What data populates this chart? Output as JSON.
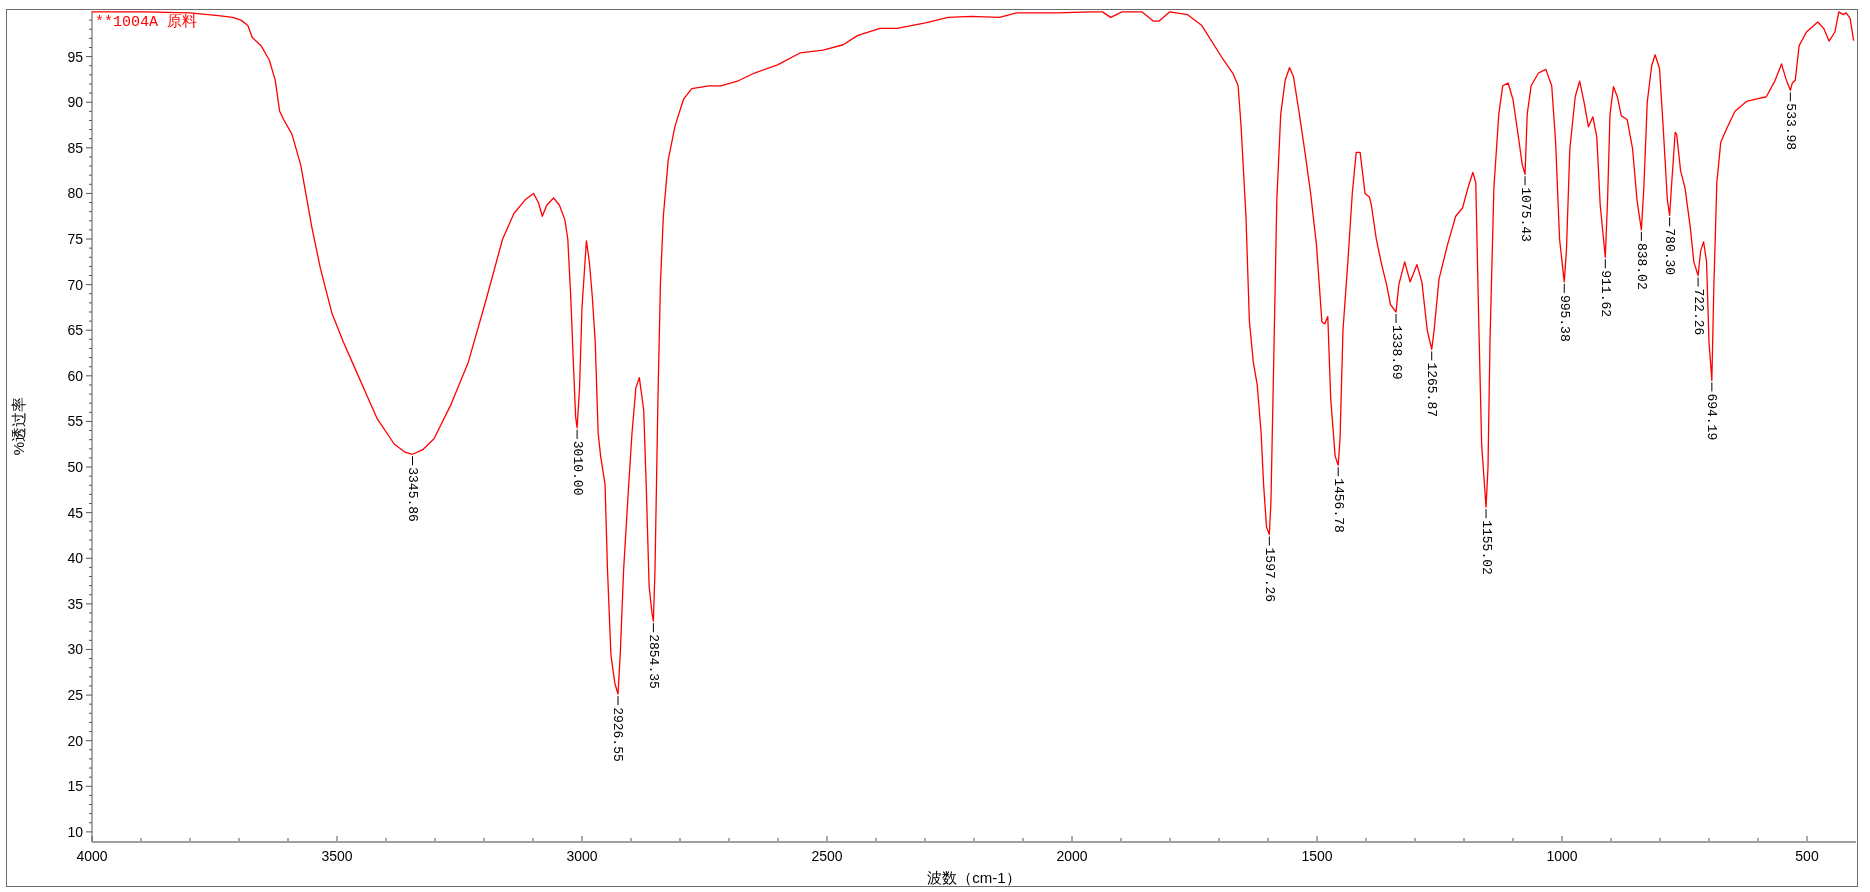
{
  "chart_data": {
    "type": "line",
    "xlabel": "波数（cm-1）",
    "ylabel": "%透过率",
    "xlim": [
      4000,
      400
    ],
    "ylim": [
      9,
      100
    ],
    "xticks": [
      4000,
      {
        "value": 3900,
        "label": null
      },
      {
        "value": 3800,
        "label": null
      },
      {
        "value": 3700,
        "label": null
      },
      {
        "value": 3600,
        "label": null
      },
      3500,
      {
        "value": 3400,
        "label": null
      },
      {
        "value": 3300,
        "label": null
      },
      {
        "value": 3200,
        "label": null
      },
      {
        "value": 3100,
        "label": null
      },
      3000,
      {
        "value": 2900,
        "label": null
      },
      {
        "value": 2800,
        "label": null
      },
      {
        "value": 2700,
        "label": null
      },
      {
        "value": 2600,
        "label": null
      },
      2500,
      {
        "value": 2400,
        "label": null
      },
      {
        "value": 2300,
        "label": null
      },
      {
        "value": 2200,
        "label": null
      },
      {
        "value": 2100,
        "label": null
      },
      2000,
      {
        "value": 1900,
        "label": null
      },
      {
        "value": 1800,
        "label": null
      },
      {
        "value": 1700,
        "label": null
      },
      {
        "value": 1600,
        "label": null
      },
      1500,
      {
        "value": 1400,
        "label": null
      },
      {
        "value": 1300,
        "label": null
      },
      {
        "value": 1200,
        "label": null
      },
      {
        "value": 1100,
        "label": null
      },
      1000,
      {
        "value": 900,
        "label": null
      },
      {
        "value": 800,
        "label": null
      },
      {
        "value": 700,
        "label": null
      },
      {
        "value": 600,
        "label": null
      },
      500
    ],
    "yticks": [
      10,
      {
        "value": 11,
        "label": null
      },
      {
        "value": 12,
        "label": null
      },
      {
        "value": 13,
        "label": null
      },
      {
        "value": 14,
        "label": null
      },
      15,
      {
        "value": 16,
        "label": null
      },
      {
        "value": 17,
        "label": null
      },
      {
        "value": 18,
        "label": null
      },
      {
        "value": 19,
        "label": null
      },
      20,
      {
        "value": 21,
        "label": null
      },
      {
        "value": 22,
        "label": null
      },
      {
        "value": 23,
        "label": null
      },
      {
        "value": 24,
        "label": null
      },
      25,
      {
        "value": 26,
        "label": null
      },
      {
        "value": 27,
        "label": null
      },
      {
        "value": 28,
        "label": null
      },
      {
        "value": 29,
        "label": null
      },
      30,
      {
        "value": 31,
        "label": null
      },
      {
        "value": 32,
        "label": null
      },
      {
        "value": 33,
        "label": null
      },
      {
        "value": 34,
        "label": null
      },
      35,
      {
        "value": 36,
        "label": null
      },
      {
        "value": 37,
        "label": null
      },
      {
        "value": 38,
        "label": null
      },
      {
        "value": 39,
        "label": null
      },
      40,
      {
        "value": 41,
        "label": null
      },
      {
        "value": 42,
        "label": null
      },
      {
        "value": 43,
        "label": null
      },
      {
        "value": 44,
        "label": null
      },
      45,
      {
        "value": 46,
        "label": null
      },
      {
        "value": 47,
        "label": null
      },
      {
        "value": 48,
        "label": null
      },
      {
        "value": 49,
        "label": null
      },
      50,
      {
        "value": 51,
        "label": null
      },
      {
        "value": 52,
        "label": null
      },
      {
        "value": 53,
        "label": null
      },
      {
        "value": 54,
        "label": null
      },
      55,
      {
        "value": 56,
        "label": null
      },
      {
        "value": 57,
        "label": null
      },
      {
        "value": 58,
        "label": null
      },
      {
        "value": 59,
        "label": null
      },
      60,
      {
        "value": 61,
        "label": null
      },
      {
        "value": 62,
        "label": null
      },
      {
        "value": 63,
        "label": null
      },
      {
        "value": 64,
        "label": null
      },
      65,
      {
        "value": 66,
        "label": null
      },
      {
        "value": 67,
        "label": null
      },
      {
        "value": 68,
        "label": null
      },
      {
        "value": 69,
        "label": null
      },
      70,
      {
        "value": 71,
        "label": null
      },
      {
        "value": 72,
        "label": null
      },
      {
        "value": 73,
        "label": null
      },
      {
        "value": 74,
        "label": null
      },
      75,
      {
        "value": 76,
        "label": null
      },
      {
        "value": 77,
        "label": null
      },
      {
        "value": 78,
        "label": null
      },
      {
        "value": 79,
        "label": null
      },
      80,
      {
        "value": 81,
        "label": null
      },
      {
        "value": 82,
        "label": null
      },
      {
        "value": 83,
        "label": null
      },
      {
        "value": 84,
        "label": null
      },
      85,
      {
        "value": 86,
        "label": null
      },
      {
        "value": 87,
        "label": null
      },
      {
        "value": 88,
        "label": null
      },
      {
        "value": 89,
        "label": null
      },
      90,
      {
        "value": 91,
        "label": null
      },
      {
        "value": 92,
        "label": null
      },
      {
        "value": 93,
        "label": null
      },
      {
        "value": 94,
        "label": null
      },
      95,
      {
        "value": 96,
        "label": null
      },
      {
        "value": 97,
        "label": null
      },
      {
        "value": 98,
        "label": null
      },
      {
        "value": 99,
        "label": null
      }
    ],
    "x": [
      4000,
      3893,
      3800,
      3742,
      3713,
      3696,
      3682,
      3673,
      3655,
      3638,
      3626,
      3617,
      3609,
      3592,
      3574,
      3551,
      3534,
      3510,
      3487,
      3464,
      3441,
      3418,
      3383,
      3360,
      3345.86,
      3325,
      3302,
      3267,
      3232,
      3197,
      3162,
      3139,
      3116,
      3099,
      3089,
      3081,
      3072,
      3058,
      3046,
      3035,
      3029,
      3023,
      3017,
      3013,
      3010,
      3005,
      3000,
      2991,
      2985,
      2979,
      2973,
      2967,
      2962,
      2953,
      2948,
      2941,
      2933,
      2926.55,
      2922,
      2915,
      2906,
      2898,
      2890,
      2883,
      2874,
      2869,
      2863,
      2857,
      2854.35,
      2851,
      2845,
      2840,
      2834,
      2824,
      2810,
      2793,
      2776,
      2741,
      2717,
      2683,
      2648,
      2601,
      2555,
      2508,
      2467,
      2438,
      2392,
      2357,
      2299,
      2253,
      2206,
      2148,
      2113,
      2031,
      1962,
      1938,
      1921,
      1898,
      1857,
      1834,
      1822,
      1801,
      1764,
      1735,
      1694,
      1671,
      1661,
      1655,
      1645,
      1638,
      1630,
      1622,
      1614,
      1609,
      1603,
      1597.26,
      1594,
      1588,
      1582,
      1574,
      1565,
      1556,
      1548,
      1536,
      1524,
      1513,
      1501,
      1490,
      1484,
      1478,
      1472,
      1463,
      1456.78,
      1453,
      1447,
      1437,
      1428,
      1420,
      1412,
      1402,
      1393,
      1389,
      1379,
      1368,
      1358,
      1350,
      1338.69,
      1333,
      1321,
      1310,
      1296,
      1286,
      1275,
      1265.87,
      1261,
      1251,
      1234,
      1217,
      1203,
      1192,
      1182,
      1176,
      1170,
      1164,
      1155.02,
      1151,
      1147,
      1139,
      1129,
      1121,
      1110,
      1100,
      1089,
      1081,
      1075.43,
      1071,
      1063,
      1048,
      1033,
      1021,
      1013,
      1005,
      995.38,
      991,
      984,
      973,
      964,
      955,
      946,
      937,
      929,
      922,
      911.62,
      907,
      902,
      895,
      887,
      879,
      867,
      856,
      847,
      838.02,
      833,
      826,
      817,
      810,
      801,
      793,
      785,
      780.3,
      776,
      769,
      766,
      758,
      749,
      738,
      731,
      722.26,
      717,
      711,
      705,
      700,
      694.19,
      690,
      684,
      676,
      664,
      647,
      623,
      600,
      583,
      565,
      552,
      542,
      533.98,
      530,
      524,
      516,
      501,
      478,
      466,
      455,
      443,
      435,
      426,
      420,
      412,
      405
    ],
    "series": [
      {
        "name": "**1004A 原料",
        "color": "#ff0000",
        "values": [
          99.9,
          99.9,
          99.8,
          99.5,
          99.3,
          99.0,
          98.4,
          97.1,
          96.2,
          94.6,
          92.4,
          89.0,
          88.1,
          86.5,
          83.1,
          76.2,
          71.8,
          66.8,
          63.7,
          60.9,
          58.1,
          55.3,
          52.5,
          51.6,
          51.4,
          51.9,
          53.1,
          56.9,
          61.5,
          68.1,
          75.0,
          77.8,
          79.3,
          80.0,
          79.0,
          77.5,
          78.7,
          79.5,
          78.7,
          77.1,
          75.0,
          68.7,
          60.6,
          55.5,
          54.3,
          58.7,
          67.5,
          74.8,
          72.5,
          68.7,
          63.7,
          53.7,
          51.2,
          48.1,
          38.8,
          29.4,
          26.3,
          25.1,
          29.4,
          38.8,
          46.9,
          53.7,
          58.7,
          59.8,
          56.2,
          48.1,
          36.9,
          33.9,
          33.1,
          38.8,
          57.5,
          70.0,
          77.5,
          83.7,
          87.4,
          90.3,
          91.5,
          91.8,
          91.8,
          92.3,
          93.2,
          94.1,
          95.4,
          95.7,
          96.3,
          97.3,
          98.1,
          98.1,
          98.7,
          99.3,
          99.4,
          99.3,
          99.8,
          99.8,
          99.9,
          99.9,
          99.3,
          99.9,
          99.9,
          98.9,
          98.9,
          99.9,
          99.6,
          98.4,
          94.9,
          93.1,
          91.8,
          87.4,
          77.5,
          66.0,
          61.5,
          59.0,
          53.7,
          48.1,
          43.4,
          42.6,
          46.2,
          62.5,
          79.3,
          88.7,
          92.4,
          93.8,
          92.8,
          88.7,
          84.3,
          80.0,
          74.3,
          65.9,
          65.7,
          66.5,
          57.5,
          51.2,
          50.2,
          53.1,
          65.0,
          72.5,
          80.0,
          84.5,
          84.5,
          80.0,
          79.6,
          78.7,
          75.0,
          72.2,
          70.0,
          67.8,
          67.0,
          70.0,
          72.5,
          70.3,
          72.2,
          70.3,
          65.0,
          62.9,
          65.0,
          70.6,
          74.3,
          77.5,
          78.4,
          80.6,
          82.3,
          81.2,
          66.2,
          52.5,
          45.6,
          50.0,
          63.7,
          80.6,
          88.7,
          91.8,
          92.1,
          90.3,
          86.2,
          83.1,
          82.1,
          88.7,
          91.8,
          93.2,
          93.6,
          91.8,
          85.6,
          75.0,
          70.3,
          73.7,
          84.9,
          90.6,
          92.3,
          90.0,
          87.3,
          88.4,
          86.2,
          78.7,
          73.0,
          79.3,
          88.7,
          91.7,
          90.6,
          88.5,
          88.1,
          84.9,
          79.3,
          76.0,
          80.6,
          90.0,
          94.0,
          95.2,
          93.7,
          86.8,
          79.3,
          77.6,
          81.2,
          86.7,
          86.5,
          82.5,
          80.6,
          76.2,
          72.5,
          71.0,
          73.7,
          74.7,
          72.5,
          63.7,
          59.5,
          70.0,
          81.2,
          85.6,
          87.1,
          89.0,
          90.1,
          90.4,
          90.6,
          92.4,
          94.2,
          92.4,
          91.3,
          92.1,
          92.4,
          96.2,
          97.7,
          98.8,
          98.1,
          96.7,
          97.7,
          99.9,
          99.6,
          99.8,
          99.2,
          96.8
        ]
      }
    ],
    "annotations": [
      {
        "text": "3345.86",
        "x": 3345.86,
        "y": 51.4
      },
      {
        "text": "3010.00",
        "x": 3010,
        "y": 54.3
      },
      {
        "text": "2926.55",
        "x": 2926.55,
        "y": 25.1
      },
      {
        "text": "2854.35",
        "x": 2854.35,
        "y": 33.1
      },
      {
        "text": "1597.26",
        "x": 1597.26,
        "y": 42.6
      },
      {
        "text": "1456.78",
        "x": 1456.78,
        "y": 50.2
      },
      {
        "text": "1338.69",
        "x": 1338.69,
        "y": 67.0
      },
      {
        "text": "1265.87",
        "x": 1265.87,
        "y": 62.9
      },
      {
        "text": "1155.02",
        "x": 1155.02,
        "y": 45.6
      },
      {
        "text": "1075.43",
        "x": 1075.43,
        "y": 82.1
      },
      {
        "text": "995.38",
        "x": 995.38,
        "y": 70.3
      },
      {
        "text": "911.62",
        "x": 911.62,
        "y": 73.0
      },
      {
        "text": "838.02",
        "x": 838.02,
        "y": 76.0
      },
      {
        "text": "780.30",
        "x": 780.3,
        "y": 77.6
      },
      {
        "text": "722.26",
        "x": 722.26,
        "y": 71.0
      },
      {
        "text": "694.19",
        "x": 694.19,
        "y": 59.5
      },
      {
        "text": "533.98",
        "x": 533.98,
        "y": 91.3
      }
    ]
  }
}
